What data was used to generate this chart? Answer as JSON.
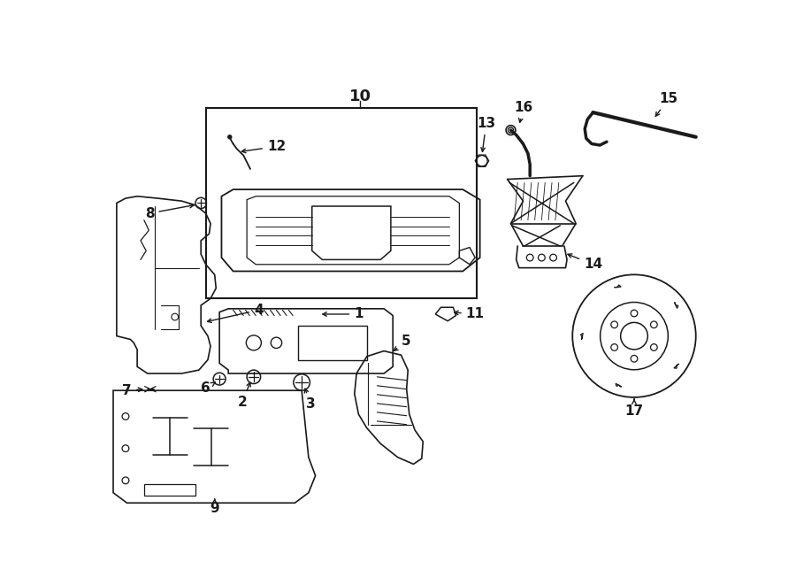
{
  "background_color": "#ffffff",
  "line_color": "#1a1a1a",
  "fig_width": 9.0,
  "fig_height": 6.61,
  "dpi": 100,
  "xlim": [
    0,
    900
  ],
  "ylim": [
    0,
    661
  ]
}
